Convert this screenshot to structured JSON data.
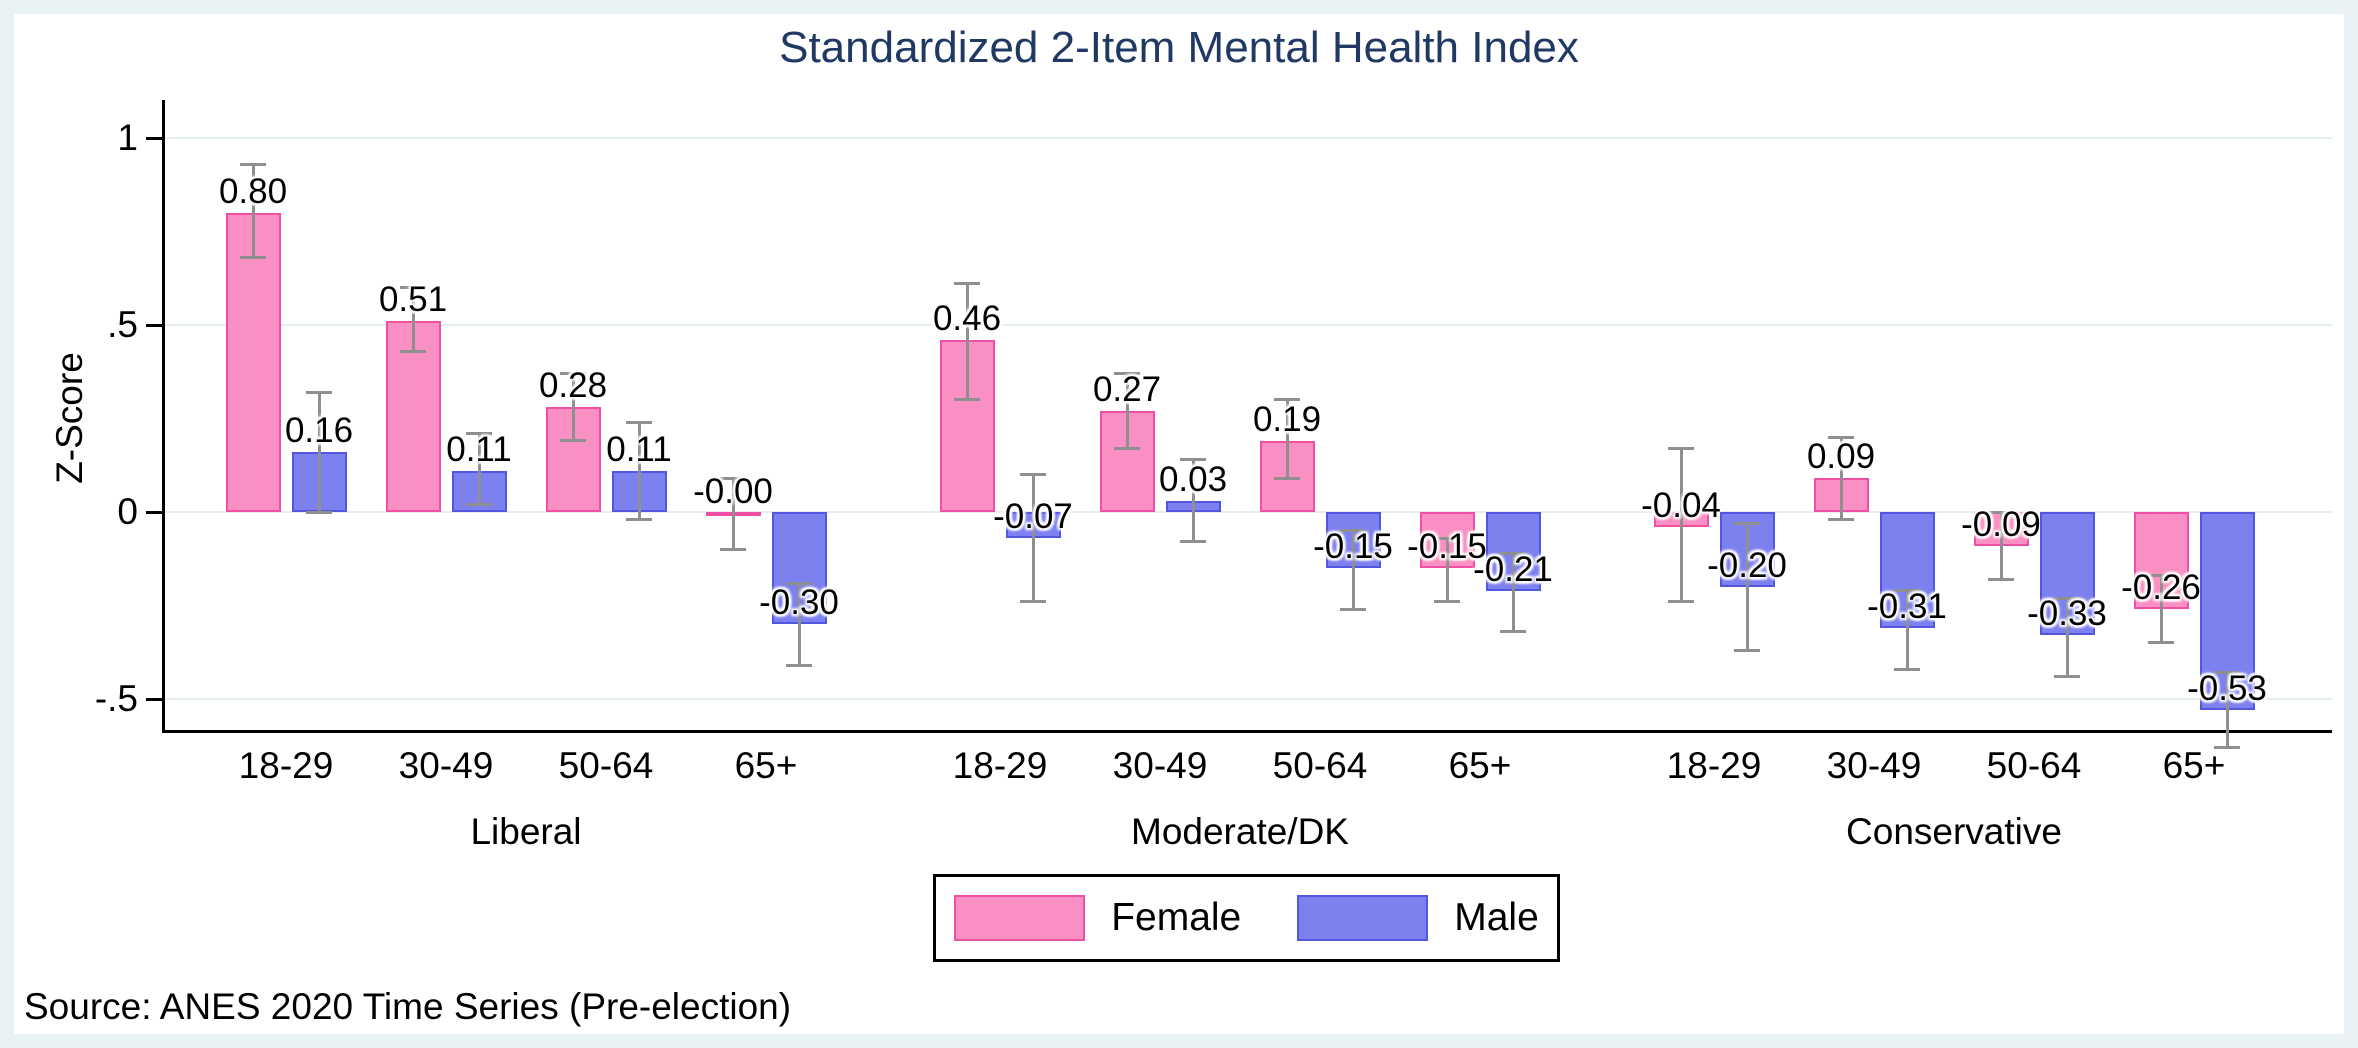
{
  "title": "Standardized 2-Item Mental Health Index",
  "source_note": "Source: ANES 2020 Time Series (Pre-election)",
  "y_axis": {
    "title": "Z-Score",
    "ticks": [
      {
        "label": "1",
        "value": 1.0
      },
      {
        "label": ".5",
        "value": 0.5
      },
      {
        "label": "0",
        "value": 0.0
      },
      {
        "label": "-.5",
        "value": -0.5
      }
    ]
  },
  "legend": {
    "items": [
      {
        "label": "Female",
        "series": "female"
      },
      {
        "label": "Male",
        "series": "male"
      }
    ]
  },
  "colors": {
    "female_fill": "#f98fc2",
    "female_border": "#ef4fa5",
    "male_fill": "#7d81f0",
    "male_border": "#5357de",
    "error_bar": "#8f8f8f",
    "title": "#1f3864",
    "gridline": "#e3eef1",
    "frame": "#e9f2f4",
    "axis": "#000000"
  },
  "chart_data": {
    "type": "bar",
    "title": "Standardized 2-Item Mental Health Index",
    "xlabel": "",
    "ylabel": "Z-Score",
    "ylim": [
      -0.57,
      1.11
    ],
    "grid": true,
    "legend_position": "bottom-center",
    "error_bars": true,
    "categories": [
      "18-29",
      "30-49",
      "50-64",
      "65+"
    ],
    "series_names": [
      "Female",
      "Male"
    ],
    "groups": [
      {
        "label": "Liberal",
        "cells": [
          {
            "category": "18-29",
            "female": {
              "value": 0.8,
              "label": "0.80",
              "ci": [
                0.68,
                0.93
              ]
            },
            "male": {
              "value": 0.16,
              "label": "0.16",
              "ci": [
                0.0,
                0.32
              ]
            }
          },
          {
            "category": "30-49",
            "female": {
              "value": 0.51,
              "label": "0.51",
              "ci": [
                0.43,
                0.6
              ]
            },
            "male": {
              "value": 0.11,
              "label": "0.11",
              "ci": [
                0.02,
                0.21
              ]
            }
          },
          {
            "category": "50-64",
            "female": {
              "value": 0.28,
              "label": "0.28",
              "ci": [
                0.19,
                0.37
              ]
            },
            "male": {
              "value": 0.11,
              "label": "0.11",
              "ci": [
                -0.02,
                0.24
              ]
            }
          },
          {
            "category": "65+",
            "female": {
              "value": -0.004,
              "label": "-0.00",
              "ci": [
                -0.1,
                0.09
              ]
            },
            "male": {
              "value": -0.3,
              "label": "-0.30",
              "ci": [
                -0.41,
                -0.19
              ]
            }
          }
        ]
      },
      {
        "label": "Moderate/DK",
        "cells": [
          {
            "category": "18-29",
            "female": {
              "value": 0.46,
              "label": "0.46",
              "ci": [
                0.3,
                0.61
              ]
            },
            "male": {
              "value": -0.07,
              "label": "-0.07",
              "ci": [
                -0.24,
                0.1
              ]
            }
          },
          {
            "category": "30-49",
            "female": {
              "value": 0.27,
              "label": "0.27",
              "ci": [
                0.17,
                0.37
              ]
            },
            "male": {
              "value": 0.03,
              "label": "0.03",
              "ci": [
                -0.08,
                0.14
              ]
            }
          },
          {
            "category": "50-64",
            "female": {
              "value": 0.19,
              "label": "0.19",
              "ci": [
                0.09,
                0.3
              ]
            },
            "male": {
              "value": -0.15,
              "label": "-0.15",
              "ci": [
                -0.26,
                -0.05
              ]
            }
          },
          {
            "category": "65+",
            "female": {
              "value": -0.15,
              "label": "-0.15",
              "ci": [
                -0.24,
                -0.07
              ]
            },
            "male": {
              "value": -0.21,
              "label": "-0.21",
              "ci": [
                -0.32,
                -0.11
              ]
            }
          }
        ]
      },
      {
        "label": "Conservative",
        "cells": [
          {
            "category": "18-29",
            "female": {
              "value": -0.04,
              "label": "-0.04",
              "ci": [
                -0.24,
                0.17
              ]
            },
            "male": {
              "value": -0.2,
              "label": "-0.20",
              "ci": [
                -0.37,
                -0.03
              ]
            }
          },
          {
            "category": "30-49",
            "female": {
              "value": 0.09,
              "label": "0.09",
              "ci": [
                -0.02,
                0.2
              ]
            },
            "male": {
              "value": -0.31,
              "label": "-0.31",
              "ci": [
                -0.42,
                -0.21
              ]
            }
          },
          {
            "category": "50-64",
            "female": {
              "value": -0.09,
              "label": "-0.09",
              "ci": [
                -0.18,
                0.0
              ]
            },
            "male": {
              "value": -0.33,
              "label": "-0.33",
              "ci": [
                -0.44,
                -0.23
              ]
            }
          },
          {
            "category": "65+",
            "female": {
              "value": -0.26,
              "label": "-0.26",
              "ci": [
                -0.35,
                -0.17
              ]
            },
            "male": {
              "value": -0.53,
              "label": "-0.53",
              "ci": [
                -0.63,
                -0.43
              ]
            }
          }
        ]
      }
    ]
  }
}
